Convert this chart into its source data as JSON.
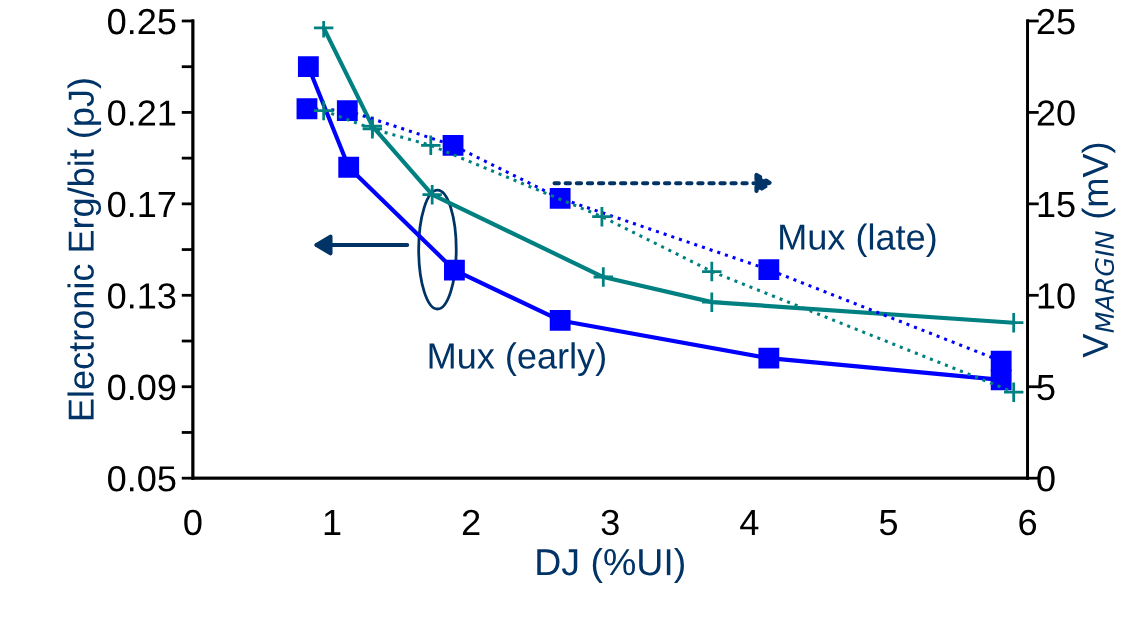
{
  "chart_data": {
    "type": "line",
    "xlabel": "DJ (%UI)",
    "ylabel": "Electronic Erg/bit (pJ)",
    "y2label": "V$_{MARGIN}$ (mV)",
    "xlim": [
      0,
      6
    ],
    "xticks": [
      0,
      1,
      2,
      3,
      4,
      5,
      6
    ],
    "ylim": [
      0.05,
      0.25
    ],
    "yticks": [
      0.05,
      {
        "value": 0.07,
        "label": null
      },
      0.09,
      {
        "value": 0.11,
        "label": null
      },
      0.13,
      {
        "value": 0.15,
        "label": null
      },
      0.17,
      {
        "value": 0.19,
        "label": null
      },
      0.21,
      {
        "value": 0.23,
        "label": null
      },
      0.25
    ],
    "y2lim": [
      0,
      25
    ],
    "y2ticks": [
      0,
      5,
      10,
      15,
      20,
      25
    ],
    "grid": false,
    "legend": false,
    "series": [
      {
        "color": "#0000ff",
        "marker": "square",
        "line_style": "solid",
        "x": [
          0.83,
          1.12,
          1.88,
          2.64,
          4.14,
          5.81
        ],
        "values": [
          0.23,
          0.186,
          0.141,
          0.119,
          0.1025,
          0.093
        ]
      },
      {
        "color": "#008080",
        "marker": "cross",
        "line_style": "solid",
        "x": [
          0.94,
          1.29,
          1.72,
          2.95,
          3.73,
          5.9
        ],
        "values": [
          0.247,
          0.204,
          0.174,
          0.138,
          0.127,
          0.118
        ]
      },
      {
        "color": "#0000ff",
        "marker": "square",
        "line_style": "dotted",
        "axis": "y2",
        "x": [
          0.82,
          1.11,
          1.87,
          2.64,
          4.14,
          5.81
        ],
        "values": [
          20.2,
          20.1,
          18.2,
          15.3,
          11.4,
          6.4
        ]
      },
      {
        "color": "#008080",
        "marker": "cross",
        "line_style": "dotted",
        "axis": "y2",
        "x": [
          0.94,
          1.29,
          1.71,
          2.94,
          3.73,
          5.9
        ],
        "values": [
          20.1,
          19.1,
          18.2,
          14.3,
          11.3,
          4.7
        ]
      }
    ],
    "annotations": [
      "Mux (late)",
      "Mux (early)"
    ]
  }
}
